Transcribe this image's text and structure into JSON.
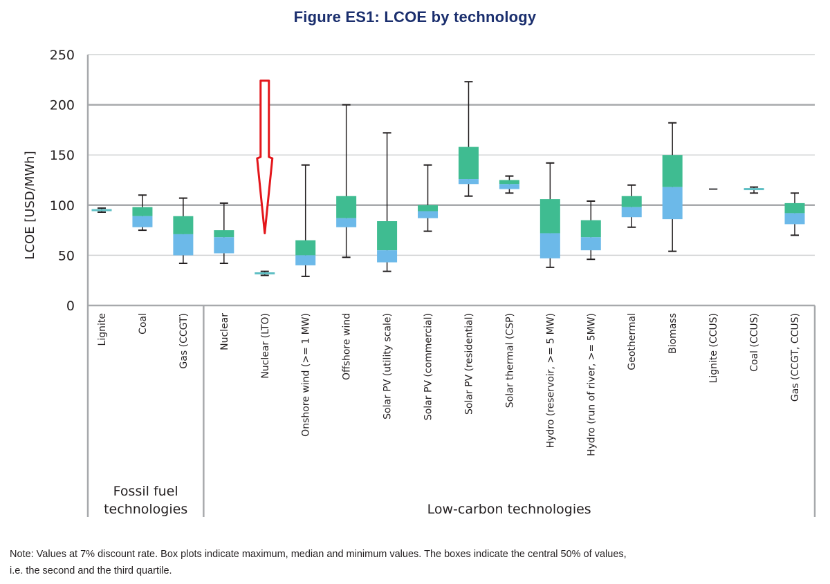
{
  "title": "Figure ES1: LCOE by technology",
  "note_line1": "Note: Values at 7% discount rate. Box plots indicate maximum, median and minimum values. The boxes indicate the central 50% of values,",
  "note_line2": "i.e. the second and the third quartile.",
  "colors": {
    "upper_box": "#3fbc91",
    "lower_box": "#6cb9e9",
    "flat_box": "#5fbfc4",
    "whisker": "#231f20",
    "annotation_arrow": "#e3161b",
    "title": "#1b2f6e"
  },
  "chart_data": {
    "type": "boxplot",
    "title": "Figure ES1: LCOE by technology",
    "xlabel": "",
    "ylabel": "LCOE [USD/MWh]",
    "ylim": [
      0,
      250
    ],
    "yticks": [
      0,
      50,
      100,
      150,
      200,
      250
    ],
    "grid": true,
    "groups": [
      {
        "label": "Fossil fuel technologies",
        "label_lines": [
          "Fossil fuel",
          "technologies"
        ],
        "count": 3
      },
      {
        "label": "Low-carbon technologies",
        "label_lines": [
          "Low-carbon technologies"
        ],
        "count": 15
      }
    ],
    "categories": [
      "Lignite",
      "Coal",
      "Gas (CCGT)",
      "Nuclear",
      "Nuclear (LTO)",
      "Onshore wind (>= 1 MW)",
      "Offshore wind",
      "Solar PV (utility scale)",
      "Solar PV (commercial)",
      "Solar PV (residential)",
      "Solar thermal (CSP)",
      "Hydro (reservoir, >= 5 MW)",
      "Hydro (run of river, >= 5MW)",
      "Geothermal",
      "Biomass",
      "Lignite (CCUS)",
      "Coal (CCUS)",
      "Gas (CCGT, CCUS)"
    ],
    "series": [
      {
        "category": "Lignite",
        "min": 93,
        "q1": 94,
        "median": 95,
        "q3": 96,
        "max": 97
      },
      {
        "category": "Coal",
        "min": 75,
        "q1": 78,
        "median": 89,
        "q3": 98,
        "max": 110
      },
      {
        "category": "Gas (CCGT)",
        "min": 42,
        "q1": 50,
        "median": 71,
        "q3": 89,
        "max": 107
      },
      {
        "category": "Nuclear",
        "min": 42,
        "q1": 52,
        "median": 68,
        "q3": 75,
        "max": 102
      },
      {
        "category": "Nuclear (LTO)",
        "min": 30,
        "q1": 31,
        "median": 32,
        "q3": 33,
        "max": 34
      },
      {
        "category": "Onshore wind (>= 1 MW)",
        "min": 29,
        "q1": 40,
        "median": 50,
        "q3": 65,
        "max": 140
      },
      {
        "category": "Offshore wind",
        "min": 48,
        "q1": 78,
        "median": 87,
        "q3": 109,
        "max": 200
      },
      {
        "category": "Solar PV (utility scale)",
        "min": 34,
        "q1": 43,
        "median": 55,
        "q3": 84,
        "max": 172
      },
      {
        "category": "Solar PV (commercial)",
        "min": 74,
        "q1": 87,
        "median": 94,
        "q3": 100,
        "max": 140
      },
      {
        "category": "Solar PV (residential)",
        "min": 109,
        "q1": 121,
        "median": 126,
        "q3": 158,
        "max": 223
      },
      {
        "category": "Solar thermal (CSP)",
        "min": 112,
        "q1": 116,
        "median": 121,
        "q3": 125,
        "max": 129
      },
      {
        "category": "Hydro (reservoir, >= 5 MW)",
        "min": 38,
        "q1": 47,
        "median": 72,
        "q3": 106,
        "max": 142
      },
      {
        "category": "Hydro (run of river, >= 5MW)",
        "min": 46,
        "q1": 55,
        "median": 68,
        "q3": 85,
        "max": 104
      },
      {
        "category": "Geothermal",
        "min": 78,
        "q1": 88,
        "median": 98,
        "q3": 109,
        "max": 120
      },
      {
        "category": "Biomass",
        "min": 54,
        "q1": 86,
        "median": 118,
        "q3": 150,
        "max": 182
      },
      {
        "category": "Lignite (CCUS)",
        "min": 116,
        "q1": 116,
        "median": 116,
        "q3": 116,
        "max": 116
      },
      {
        "category": "Coal (CCUS)",
        "min": 112,
        "q1": 115,
        "median": 116,
        "q3": 117,
        "max": 118
      },
      {
        "category": "Gas (CCGT, CCUS)",
        "min": 70,
        "q1": 81,
        "median": 92,
        "q3": 102,
        "max": 112
      }
    ],
    "annotations": [
      {
        "type": "arrow",
        "points_to": "Nuclear (LTO)",
        "direction": "down",
        "color": "#e3161b",
        "from_value": 224,
        "to_value": 72
      }
    ]
  }
}
